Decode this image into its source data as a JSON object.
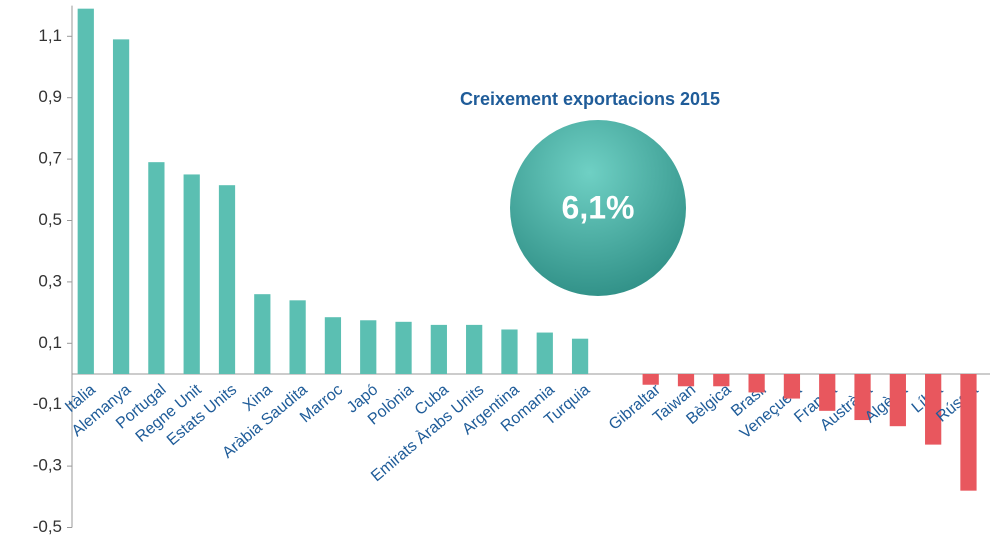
{
  "chart_data": {
    "type": "bar",
    "annotations": {
      "title": "Creixement exportacions 2015",
      "highlight": "6,1%"
    },
    "categories": [
      "Itàlia",
      "Alemanya",
      "Portugal",
      "Regne Unit",
      "Estats Units",
      "Xina",
      "Aràbia Saudita",
      "Marroc",
      "Japó",
      "Polònia",
      "Cuba",
      "Emirats Àrabs Units",
      "Argentina",
      "Romania",
      "Turquia",
      null,
      "Gibraltar",
      "Taiwan",
      "Bèlgica",
      "Brasil",
      "Veneçuela",
      "França",
      "Austràlia",
      "Algèria",
      "Líbia",
      "Rússia"
    ],
    "values": [
      1.19,
      1.09,
      0.69,
      0.65,
      0.615,
      0.26,
      0.24,
      0.185,
      0.175,
      0.17,
      0.16,
      0.16,
      0.145,
      0.135,
      0.115,
      null,
      -0.035,
      -0.04,
      -0.04,
      -0.06,
      -0.08,
      -0.12,
      -0.15,
      -0.17,
      -0.23,
      -0.38
    ],
    "positive_color": "#5bbfb2",
    "negative_color": "#e8575e",
    "ylim": [
      -0.5,
      1.2
    ],
    "yticks": [
      {
        "value": -0.5,
        "label": "-0,5"
      },
      {
        "value": -0.3,
        "label": "-0,3"
      },
      {
        "value": -0.1,
        "label": "-0,1"
      },
      {
        "value": 0.1,
        "label": "0,1"
      },
      {
        "value": 0.3,
        "label": "0,3"
      },
      {
        "value": 0.5,
        "label": "0,5"
      },
      {
        "value": 0.7,
        "label": "0,7"
      },
      {
        "value": 0.9,
        "label": "0,9"
      },
      {
        "value": 1.1,
        "label": "1,1"
      }
    ],
    "grid": false
  }
}
